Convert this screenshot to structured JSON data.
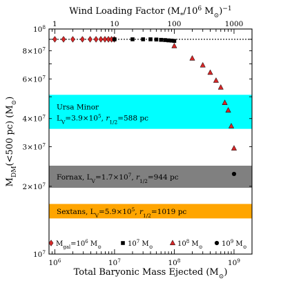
{
  "chart_data": {
    "type": "scatter",
    "title": "",
    "xlabel": "Total Baryonic Mass Ejected (M⊙)",
    "ylabel": "MDM(<500 pc) (M⊙)",
    "top_xlabel": "Wind Loading Factor (M*/10⁶ M⊙)⁻¹",
    "x_scale": "log",
    "y_scale": "log",
    "xlim": [
      800000,
      2000000000
    ],
    "ylim": [
      10000000,
      100000000
    ],
    "top_xlim": [
      0.8,
      2000
    ],
    "x_ticks": [
      {
        "value": 1000000,
        "base": "10",
        "exp": "6"
      },
      {
        "value": 10000000,
        "base": "10",
        "exp": "7"
      },
      {
        "value": 100000000,
        "base": "10",
        "exp": "8"
      },
      {
        "value": 1000000000,
        "base": "10",
        "exp": "9"
      }
    ],
    "top_ticks": [
      {
        "value": 1,
        "label": "1"
      },
      {
        "value": 10,
        "label": "10"
      },
      {
        "value": 100,
        "label": "100"
      },
      {
        "value": 1000,
        "label": "1000"
      }
    ],
    "y_ticks": [
      {
        "value": 100000000,
        "base": "10",
        "exp": "8"
      },
      {
        "value": 80000000,
        "base": "8×10",
        "exp": "7"
      },
      {
        "value": 60000000,
        "base": "6×10",
        "exp": "7"
      },
      {
        "value": 40000000,
        "base": "4×10",
        "exp": "7"
      },
      {
        "value": 30000000,
        "base": "3×10",
        "exp": "7"
      },
      {
        "value": 20000000,
        "base": "2×10",
        "exp": "7"
      },
      {
        "value": 10000000,
        "base": "10",
        "exp": "7"
      }
    ],
    "reference_line": {
      "y": 90000000,
      "style": "dotted"
    },
    "bands": [
      {
        "name": "Ursa Minor",
        "line1": "Ursa Minor",
        "line2": "LV=3.9×10⁵, r1/2=588 pc",
        "y_min": 36000000,
        "y_max": 51000000,
        "color": "#00ffff"
      },
      {
        "name": "Fornax",
        "line1": "Fornax, LV=1.7×10⁷, r1/2=944 pc",
        "y_min": 19700000,
        "y_max": 24700000,
        "color": "#808080"
      },
      {
        "name": "Sextans",
        "line1": "Sextans, LV=5.9×10⁵, r1/2=1019 pc",
        "y_min": 14400000,
        "y_max": 16700000,
        "color": "#ffa500"
      }
    ],
    "series": [
      {
        "name": "Mgal=10⁶ M⊙",
        "marker": "diamond",
        "color": "#d62728",
        "points": [
          [
            1000000,
            90000000
          ],
          [
            1400000,
            90000000
          ],
          [
            2000000,
            90000000
          ],
          [
            2900000,
            90000000
          ],
          [
            3900000,
            90000000
          ],
          [
            4900000,
            90000000
          ],
          [
            5900000,
            90000000
          ],
          [
            6900000,
            90000000
          ],
          [
            7900000,
            90000000
          ],
          [
            8900000,
            90000000
          ],
          [
            9900000,
            90000000
          ]
        ]
      },
      {
        "name": "10⁷ M⊙",
        "marker": "square",
        "color": "#000000",
        "points": [
          [
            10000000,
            90000000
          ],
          [
            20000000,
            90000000
          ],
          [
            30000000,
            90000000
          ],
          [
            40000000,
            90000000
          ],
          [
            50000000,
            89800000
          ],
          [
            60000000,
            89500000
          ],
          [
            70000000,
            89300000
          ],
          [
            80000000,
            89000000
          ],
          [
            90000000,
            88800000
          ],
          [
            100000000,
            88500000
          ]
        ]
      },
      {
        "name": "10⁸ M⊙",
        "marker": "triangle",
        "color": "#d62728",
        "points": [
          [
            100000000,
            84000000
          ],
          [
            200000000,
            74000000
          ],
          [
            300000000,
            69000000
          ],
          [
            400000000,
            64000000
          ],
          [
            500000000,
            59000000
          ],
          [
            600000000,
            55000000
          ],
          [
            700000000,
            47000000
          ],
          [
            800000000,
            43500000
          ],
          [
            900000000,
            37000000
          ],
          [
            1000000000,
            29500000
          ]
        ]
      },
      {
        "name": "10⁹ M⊙",
        "marker": "circle",
        "color": "#000000",
        "points": [
          [
            1000000000,
            22700000
          ]
        ]
      }
    ]
  }
}
